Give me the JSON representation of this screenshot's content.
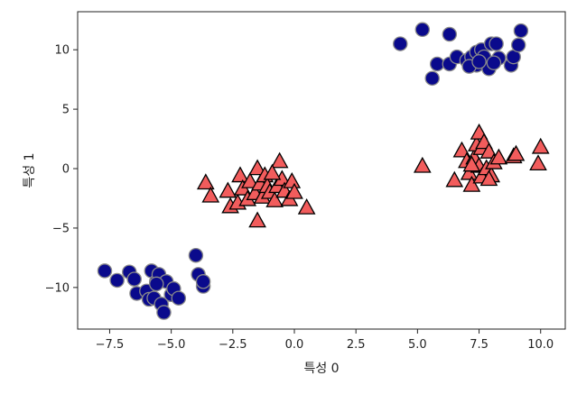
{
  "chart_data": {
    "type": "scatter",
    "title": "",
    "xlabel": "특성 0",
    "ylabel": "특성 1",
    "xlim": [
      -8.8,
      11.0
    ],
    "ylim": [
      -13.5,
      13.2
    ],
    "xticks": [
      -7.5,
      -5.0,
      -2.5,
      0.0,
      2.5,
      5.0,
      7.5,
      10.0
    ],
    "xtick_labels": [
      "−7.5",
      "−5.0",
      "−2.5",
      "0.0",
      "2.5",
      "5.0",
      "7.5",
      "10.0"
    ],
    "yticks": [
      -10,
      -5,
      0,
      5,
      10
    ],
    "ytick_labels": [
      "−10",
      "−5",
      "0",
      "5",
      "10"
    ],
    "grid": false,
    "series": [
      {
        "marker": "circle",
        "color": "#0a0a8c",
        "edge_color": "#8a8a8a",
        "points": [
          [
            4.3,
            10.5
          ],
          [
            5.2,
            11.7
          ],
          [
            6.3,
            11.3
          ],
          [
            5.6,
            7.6
          ],
          [
            5.8,
            8.8
          ],
          [
            6.3,
            8.8
          ],
          [
            6.6,
            9.4
          ],
          [
            7.0,
            9.1
          ],
          [
            7.2,
            9.4
          ],
          [
            7.4,
            9.8
          ],
          [
            7.4,
            8.7
          ],
          [
            7.6,
            10.0
          ],
          [
            7.7,
            9.4
          ],
          [
            7.9,
            8.4
          ],
          [
            8.0,
            10.5
          ],
          [
            8.2,
            10.5
          ],
          [
            8.3,
            9.3
          ],
          [
            8.8,
            8.7
          ],
          [
            8.9,
            9.4
          ],
          [
            9.1,
            10.4
          ],
          [
            9.2,
            11.6
          ],
          [
            7.1,
            8.6
          ],
          [
            7.5,
            9.0
          ],
          [
            8.1,
            8.9
          ],
          [
            -7.7,
            -8.6
          ],
          [
            -7.2,
            -9.4
          ],
          [
            -6.7,
            -8.7
          ],
          [
            -6.5,
            -9.3
          ],
          [
            -6.4,
            -10.5
          ],
          [
            -6.0,
            -10.3
          ],
          [
            -5.9,
            -11.0
          ],
          [
            -5.8,
            -8.6
          ],
          [
            -5.7,
            -10.9
          ],
          [
            -5.6,
            -9.5
          ],
          [
            -5.5,
            -8.9
          ],
          [
            -5.4,
            -11.4
          ],
          [
            -5.3,
            -12.1
          ],
          [
            -5.2,
            -9.5
          ],
          [
            -5.0,
            -10.6
          ],
          [
            -5.6,
            -9.7
          ],
          [
            -4.9,
            -10.1
          ],
          [
            -4.7,
            -10.9
          ],
          [
            -4.0,
            -7.3
          ],
          [
            -3.9,
            -8.9
          ],
          [
            -3.7,
            -9.9
          ],
          [
            -3.7,
            -9.5
          ]
        ]
      },
      {
        "marker": "triangle",
        "color": "#f25c5c",
        "edge_color": "#000000",
        "points": [
          [
            -3.6,
            -1.2
          ],
          [
            -3.4,
            -2.3
          ],
          [
            -2.7,
            -1.9
          ],
          [
            -2.6,
            -3.2
          ],
          [
            -2.3,
            -2.9
          ],
          [
            -2.2,
            -0.6
          ],
          [
            -2.1,
            -1.7
          ],
          [
            -1.9,
            -2.6
          ],
          [
            -1.8,
            -1.1
          ],
          [
            -1.6,
            -2.1
          ],
          [
            -1.5,
            0.0
          ],
          [
            -1.4,
            -1.3
          ],
          [
            -1.3,
            -2.4
          ],
          [
            -1.2,
            -0.6
          ],
          [
            -1.1,
            -1.5
          ],
          [
            -1.0,
            -2.0
          ],
          [
            -0.8,
            -2.7
          ],
          [
            -0.7,
            -1.5
          ],
          [
            -0.6,
            0.6
          ],
          [
            -0.5,
            -0.9
          ],
          [
            -0.4,
            -1.9
          ],
          [
            -0.2,
            -2.6
          ],
          [
            -0.1,
            -1.1
          ],
          [
            0.0,
            -2.0
          ],
          [
            0.5,
            -3.3
          ],
          [
            -1.5,
            -4.4
          ],
          [
            -0.9,
            -0.4
          ],
          [
            5.2,
            0.2
          ],
          [
            6.5,
            -1.0
          ],
          [
            6.8,
            1.5
          ],
          [
            7.0,
            0.6
          ],
          [
            7.1,
            -0.4
          ],
          [
            7.2,
            -1.4
          ],
          [
            7.3,
            0.9
          ],
          [
            7.4,
            2.0
          ],
          [
            7.5,
            3.0
          ],
          [
            7.5,
            0.2
          ],
          [
            7.6,
            1.7
          ],
          [
            7.6,
            -0.7
          ],
          [
            7.7,
            2.2
          ],
          [
            7.8,
            0.0
          ],
          [
            7.9,
            1.4
          ],
          [
            8.0,
            -0.6
          ],
          [
            8.1,
            0.5
          ],
          [
            8.3,
            0.9
          ],
          [
            8.9,
            1.0
          ],
          [
            9.0,
            1.2
          ],
          [
            9.9,
            0.4
          ],
          [
            10.0,
            1.8
          ],
          [
            7.2,
            0.3
          ],
          [
            7.9,
            -0.9
          ]
        ]
      }
    ]
  }
}
